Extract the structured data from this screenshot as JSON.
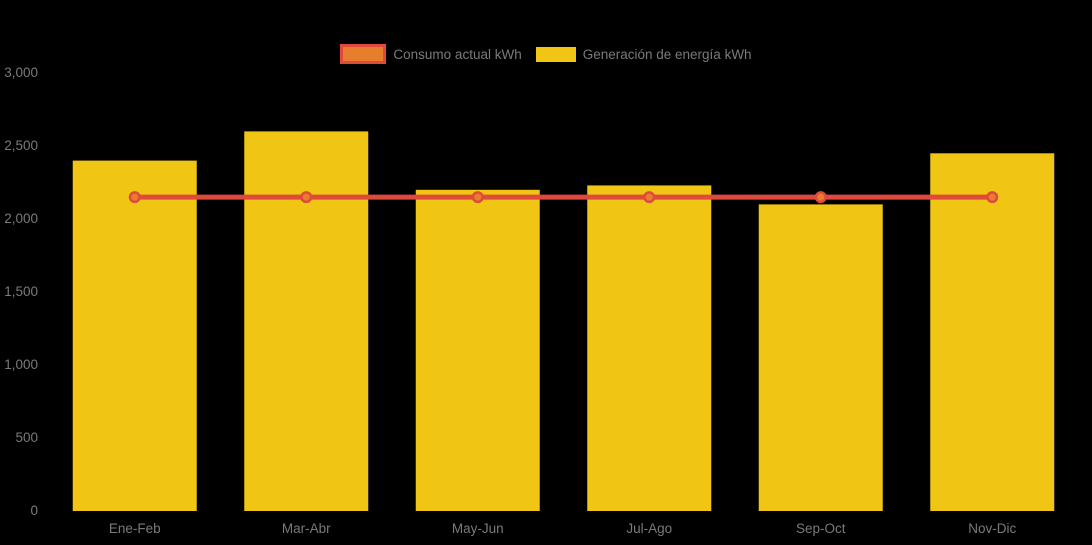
{
  "chart_data": {
    "type": "bar",
    "title": "",
    "categories": [
      "Ene-Feb",
      "Mar-Abr",
      "May-Jun",
      "Jul-Ago",
      "Sep-Oct",
      "Nov-Dic"
    ],
    "series": [
      {
        "name": "Consumo actual kWh",
        "type": "line",
        "values": [
          2150,
          2150,
          2150,
          2150,
          2150,
          2150
        ],
        "line_color": "#e04a3c",
        "marker_color": "#e67e2e"
      },
      {
        "name": "Generación de energía kWh",
        "type": "bar",
        "values": [
          2400,
          2600,
          2200,
          2230,
          2100,
          2450
        ],
        "color": "#f0c513"
      }
    ],
    "xlabel": "",
    "ylabel": "",
    "ylim": [
      0,
      3000
    ],
    "ytick_step": 500,
    "yticks": [
      "0",
      "500",
      "1,000",
      "1,500",
      "2,000",
      "2,500",
      "3,000"
    ],
    "grid": false,
    "legend_position": "top-center",
    "background_color": "#000000",
    "text_color": "#7a7a7a"
  },
  "legend": {
    "items": [
      {
        "label": "Consumo actual kWh",
        "swatch_fill": "#e67e2e",
        "swatch_border": "#e04a3c"
      },
      {
        "label": "Generación de energía kWh",
        "swatch_fill": "#f0c513",
        "swatch_border": "#f0c513"
      }
    ]
  }
}
